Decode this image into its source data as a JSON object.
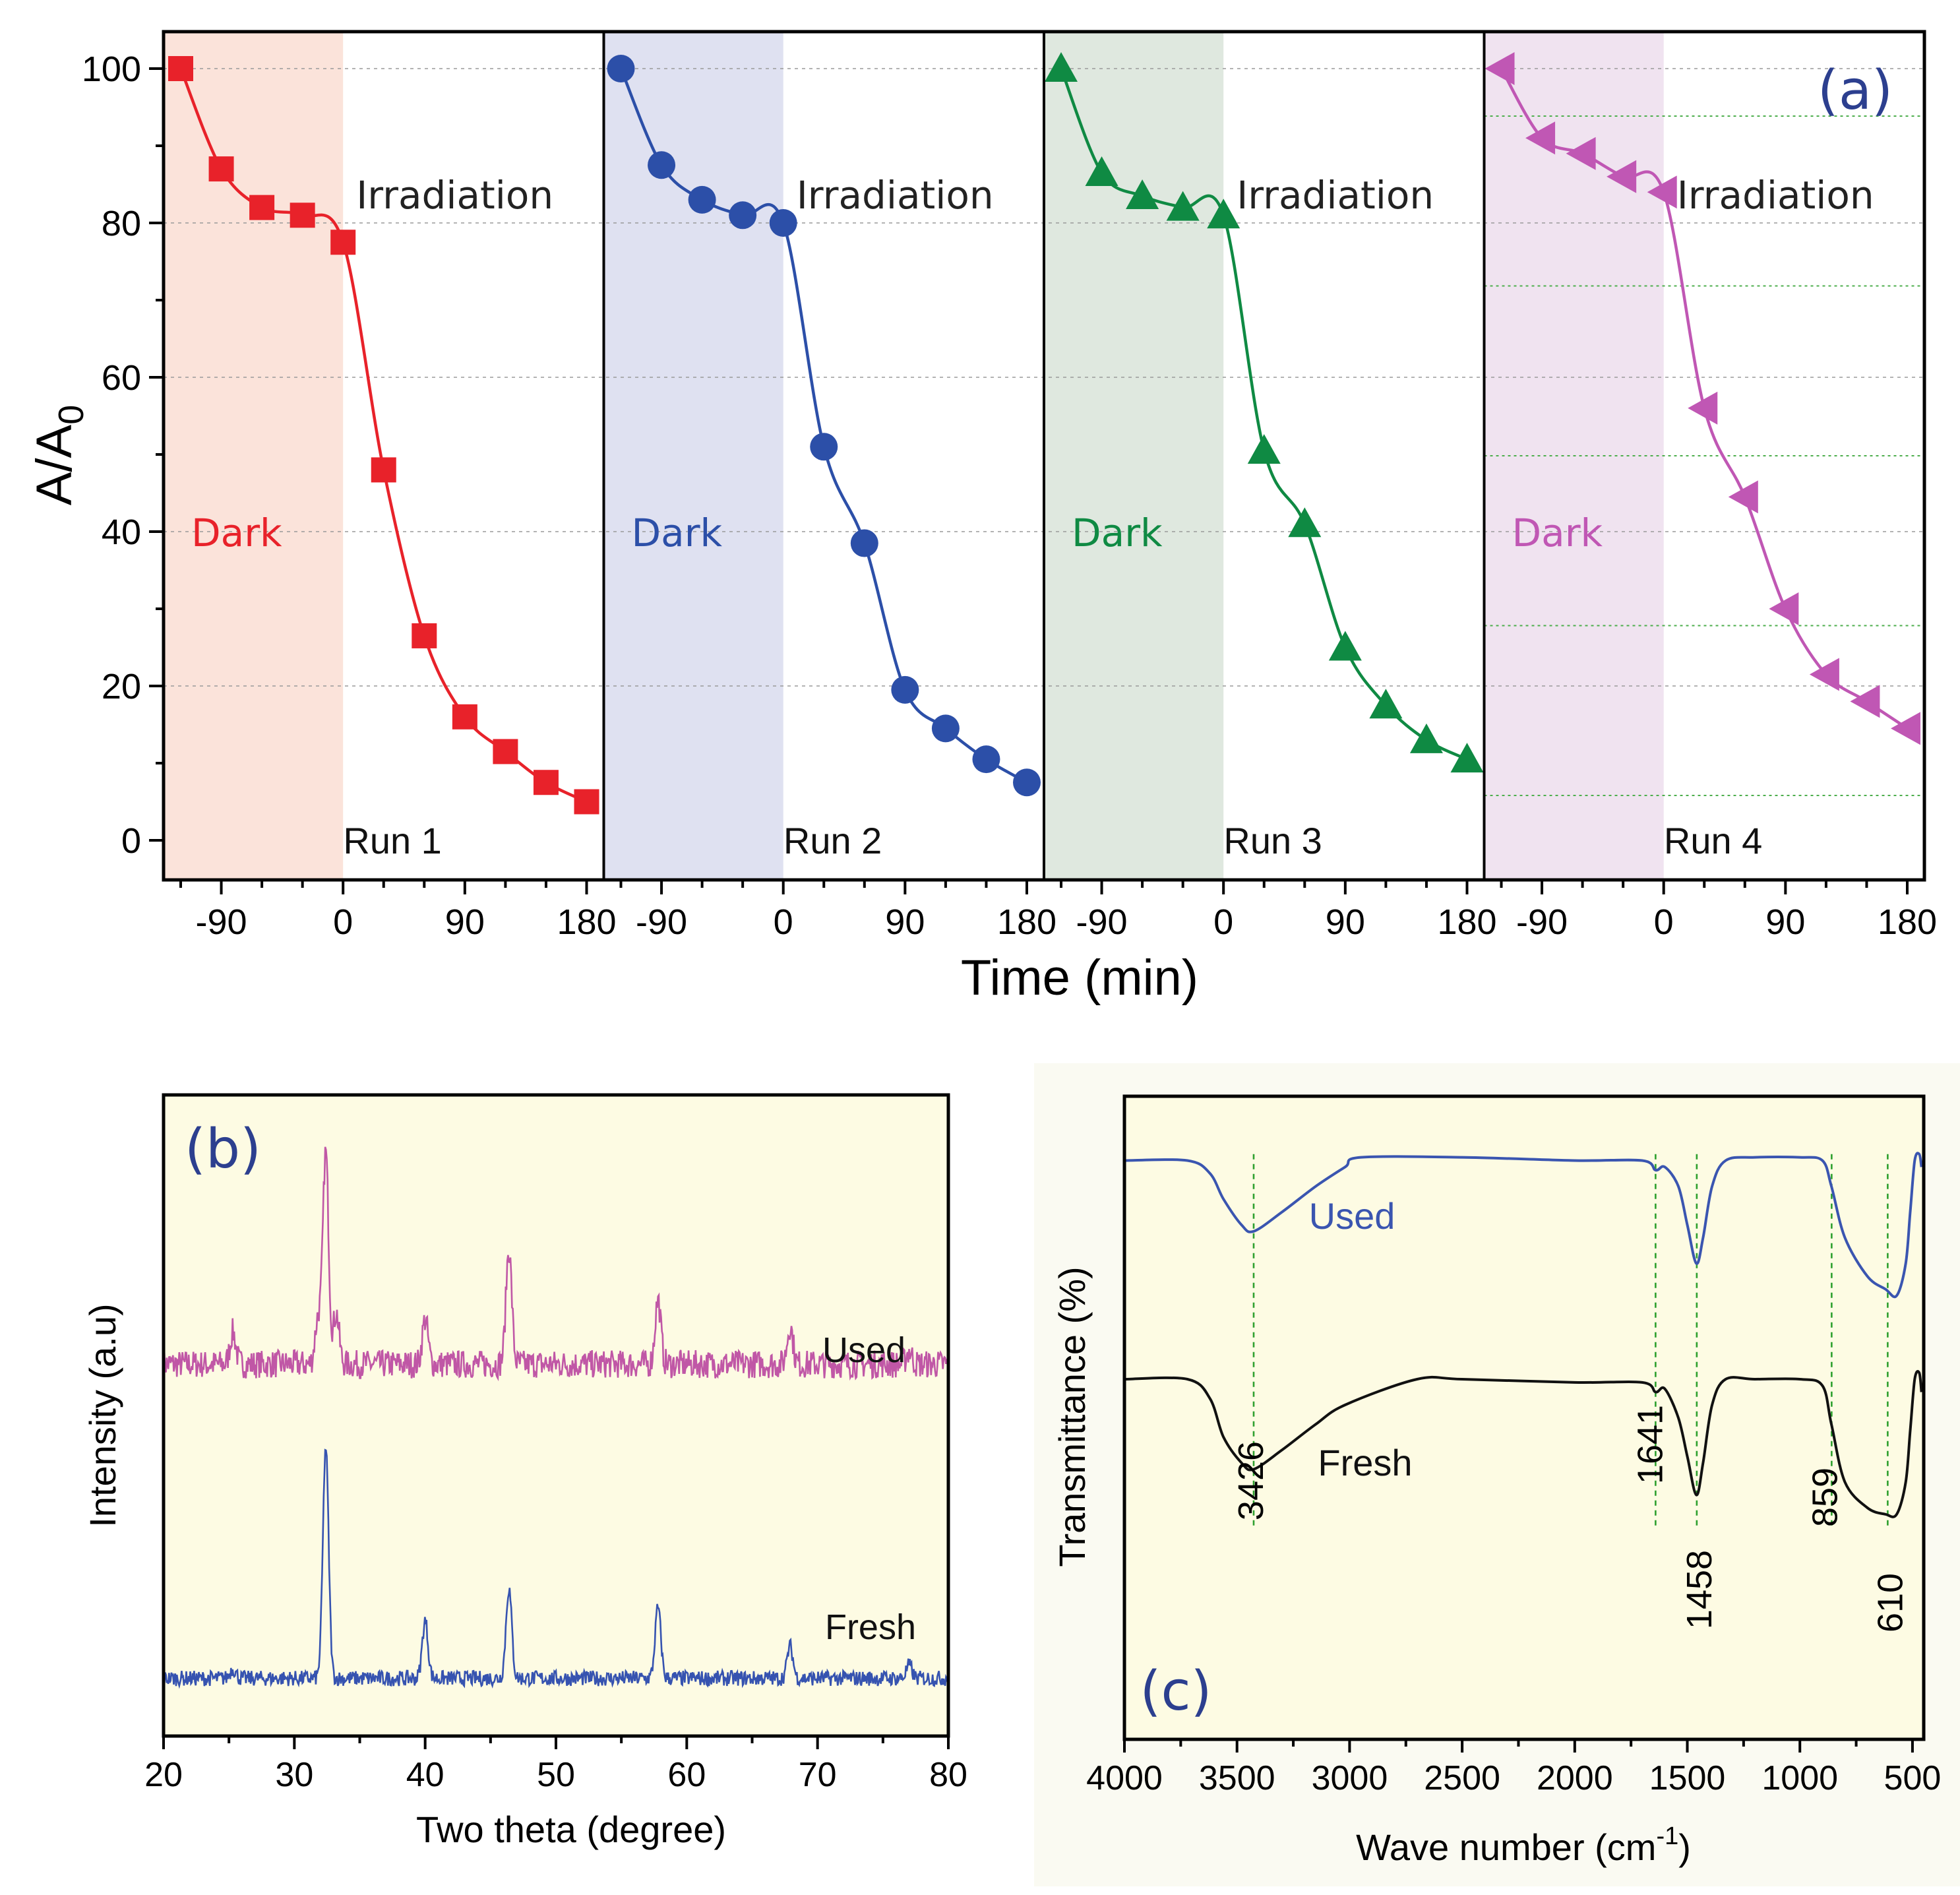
{
  "chart_data": [
    {
      "type": "line",
      "panel": "(a)",
      "xlabel": "Time (min)",
      "ylabel": "A/A",
      "ylabel_sub": "0",
      "ylim": [
        0,
        100
      ],
      "yticks": [
        0,
        20,
        40,
        60,
        80,
        100
      ],
      "xlim": [
        -120,
        180
      ],
      "xticks": [
        -90,
        0,
        90,
        180
      ],
      "dark_label": "Dark",
      "irradiation_label": "Irradiation",
      "runs": [
        {
          "name": "Run 1",
          "color": "#e8222a",
          "shade": "#fbe3da",
          "marker": "square",
          "x": [
            -120,
            -90,
            -60,
            -30,
            0,
            30,
            60,
            90,
            120,
            150,
            180
          ],
          "y": [
            100,
            87,
            82,
            81,
            77.5,
            48,
            26.5,
            16,
            11.5,
            7.5,
            5
          ]
        },
        {
          "name": "Run 2",
          "color": "#2c4fa8",
          "shade": "#dfe1f1",
          "marker": "circle",
          "x": [
            -120,
            -90,
            -60,
            -30,
            0,
            30,
            60,
            90,
            120,
            150,
            180
          ],
          "y": [
            100,
            87.5,
            83,
            81,
            80,
            51,
            38.5,
            19.5,
            14.5,
            10.5,
            7.5
          ]
        },
        {
          "name": "Run 3",
          "color": "#0f8a43",
          "shade": "#dfe8df",
          "marker": "triangle-up",
          "x": [
            -120,
            -90,
            -60,
            -30,
            0,
            30,
            60,
            90,
            120,
            150,
            180
          ],
          "y": [
            100,
            86.5,
            83.5,
            82,
            81,
            50.5,
            41,
            25,
            17.5,
            13,
            10.5
          ]
        },
        {
          "name": "Run 4",
          "color": "#c057b4",
          "shade": "#f0e3f0",
          "marker": "triangle-left",
          "x": [
            -120,
            -90,
            -60,
            -30,
            0,
            30,
            60,
            90,
            120,
            150,
            180
          ],
          "y": [
            100,
            91,
            89,
            86,
            84,
            56,
            44.5,
            30,
            21.5,
            18,
            14.5
          ]
        }
      ]
    },
    {
      "type": "line",
      "panel": "(b)",
      "xlabel": "Two theta (degree)",
      "ylabel": "Intensity (a.u)",
      "xlim": [
        20,
        80
      ],
      "xticks": [
        20,
        30,
        40,
        50,
        60,
        70,
        80
      ],
      "series": [
        {
          "name": "Used",
          "color": "#c057a6",
          "baseline": 0.58,
          "noise": 0.022,
          "peaks": [
            [
              25.3,
              0.05
            ],
            [
              31.8,
              0.07
            ],
            [
              32.4,
              0.33
            ],
            [
              33.2,
              0.08
            ],
            [
              40.0,
              0.07
            ],
            [
              46.4,
              0.18
            ],
            [
              57.8,
              0.1
            ],
            [
              67.9,
              0.06
            ],
            [
              77.0,
              0.02
            ]
          ]
        },
        {
          "name": "Fresh",
          "color": "#3653b0",
          "baseline": 0.09,
          "noise": 0.012,
          "peaks": [
            [
              25.3,
              0.015
            ],
            [
              32.4,
              0.36
            ],
            [
              40.0,
              0.09
            ],
            [
              46.4,
              0.14
            ],
            [
              57.8,
              0.11
            ],
            [
              67.9,
              0.05
            ],
            [
              77.0,
              0.02
            ]
          ]
        }
      ]
    },
    {
      "type": "line",
      "panel": "(c)",
      "xlabel": "Wave number (cm",
      "xlabel_sup": "-1",
      "xlabel_end": ")",
      "ylabel": "Transmittance (%)",
      "xlim": [
        4000,
        450
      ],
      "xticks": [
        4000,
        3500,
        3000,
        2500,
        2000,
        1500,
        1000,
        500
      ],
      "peak_labels": [
        "3426",
        "1641",
        "1458",
        "859",
        "610"
      ],
      "peak_positions": [
        3426,
        1641,
        1458,
        859,
        610
      ],
      "series": [
        {
          "name": "Used",
          "color": "#3a55b0",
          "x": [
            4000,
            3720,
            3620,
            3560,
            3480,
            3426,
            3300,
            3150,
            3020,
            2950,
            2500,
            2000,
            1700,
            1641,
            1600,
            1540,
            1500,
            1460,
            1430,
            1390,
            1330,
            1200,
            1000,
            900,
            860,
            800,
            700,
            620,
            570,
            530,
            510,
            490,
            470,
            460
          ],
          "y": [
            0.9,
            0.9,
            0.88,
            0.84,
            0.8,
            0.79,
            0.82,
            0.86,
            0.89,
            0.905,
            0.905,
            0.9,
            0.9,
            0.885,
            0.89,
            0.86,
            0.8,
            0.74,
            0.78,
            0.86,
            0.9,
            0.905,
            0.905,
            0.9,
            0.86,
            0.78,
            0.72,
            0.7,
            0.69,
            0.74,
            0.82,
            0.9,
            0.91,
            0.89
          ]
        },
        {
          "name": "Fresh",
          "color": "#111111",
          "x": [
            4000,
            3720,
            3620,
            3560,
            3480,
            3426,
            3300,
            3150,
            3020,
            2700,
            2500,
            2000,
            1700,
            1641,
            1600,
            1540,
            1500,
            1460,
            1430,
            1390,
            1330,
            1200,
            1000,
            900,
            860,
            800,
            700,
            620,
            570,
            530,
            510,
            490,
            470,
            460
          ],
          "y": [
            0.56,
            0.56,
            0.53,
            0.47,
            0.43,
            0.42,
            0.45,
            0.49,
            0.52,
            0.56,
            0.56,
            0.555,
            0.555,
            0.54,
            0.545,
            0.5,
            0.44,
            0.38,
            0.43,
            0.52,
            0.56,
            0.56,
            0.56,
            0.55,
            0.49,
            0.4,
            0.36,
            0.35,
            0.35,
            0.4,
            0.48,
            0.56,
            0.57,
            0.54
          ]
        }
      ]
    }
  ]
}
